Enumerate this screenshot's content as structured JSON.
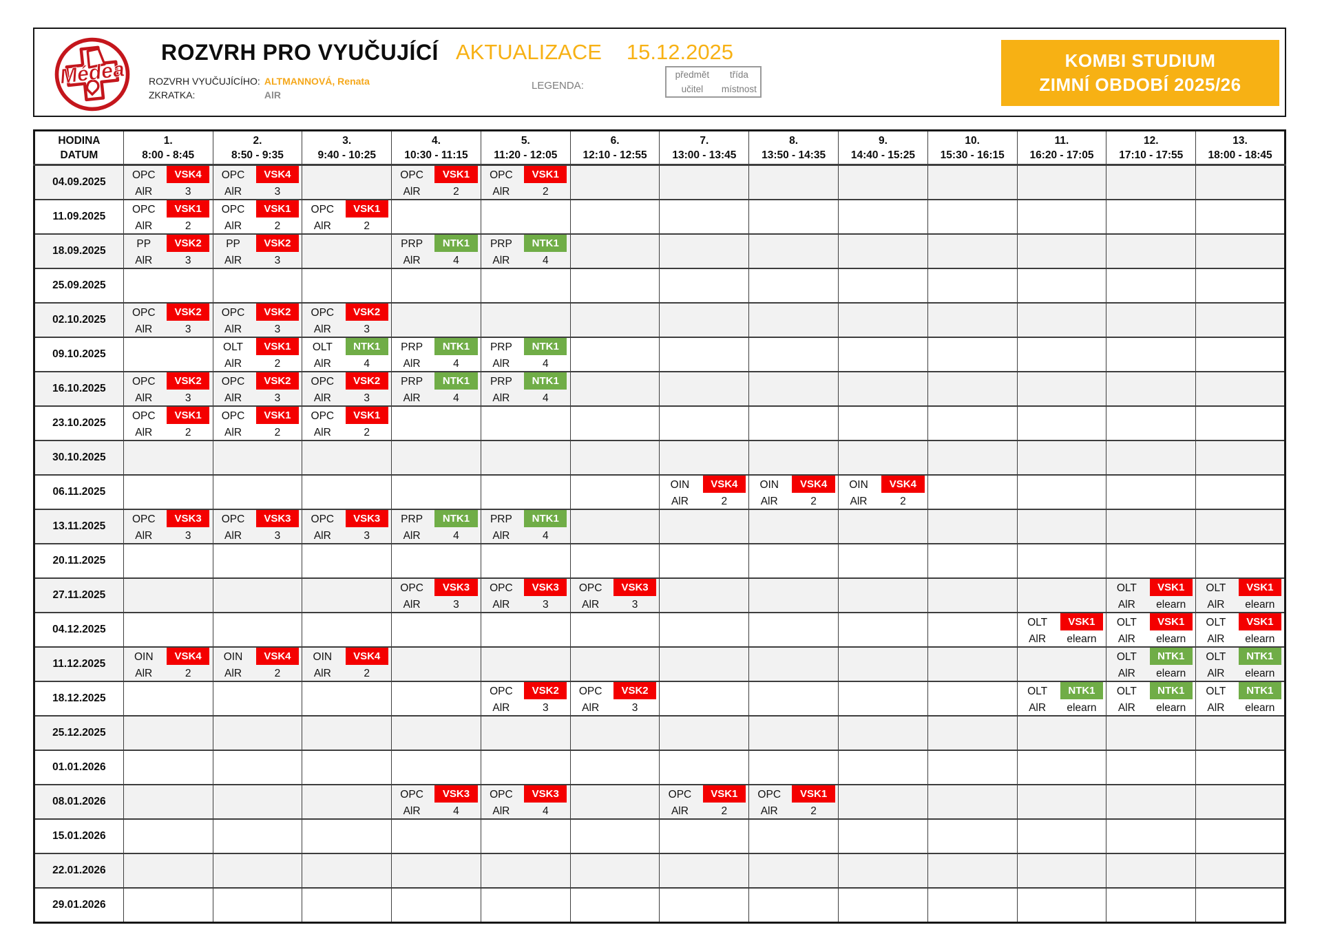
{
  "colors": {
    "accent_yellow": "#f7b114",
    "badge_red": "#f40000",
    "badge_green": "#70ad47",
    "row_shade": "#f2f2f2",
    "logo_red": "#c4161c",
    "legend_gray": "#7d7d7d"
  },
  "header": {
    "logo_text": "Médea",
    "title": "ROZVRH PRO VYUČUJÍCÍ",
    "update_label": "AKTUALIZACE",
    "update_date": "15.12.2025",
    "teacher_label": "ROZVRH VYUČUJÍCÍHO:",
    "teacher_name": "ALTMANNOVÁ, Renata",
    "abbr_label": "ZKRATKA:",
    "abbr_value": "AlR",
    "legend_label": "LEGENDA:",
    "legend": {
      "top_left": "předmět",
      "top_right": "třída",
      "bottom_left": "učitel",
      "bottom_right": "místnost"
    },
    "program_line1": "KOMBI STUDIUM",
    "program_line2": "ZIMNÍ OBDOBÍ 2025/26"
  },
  "table": {
    "corner_line1": "HODINA",
    "corner_line2": "DATUM",
    "periods": [
      {
        "num": "1.",
        "time": "8:00 - 8:45"
      },
      {
        "num": "2.",
        "time": "8:50 - 9:35"
      },
      {
        "num": "3.",
        "time": "9:40 - 10:25"
      },
      {
        "num": "4.",
        "time": "10:30 - 11:15"
      },
      {
        "num": "5.",
        "time": "11:20 - 12:05"
      },
      {
        "num": "6.",
        "time": "12:10 - 12:55"
      },
      {
        "num": "7.",
        "time": "13:00 - 13:45"
      },
      {
        "num": "8.",
        "time": "13:50 - 14:35"
      },
      {
        "num": "9.",
        "time": "14:40 - 15:25"
      },
      {
        "num": "10.",
        "time": "15:30 - 16:15"
      },
      {
        "num": "11.",
        "time": "16:20 - 17:05"
      },
      {
        "num": "12.",
        "time": "17:10 - 17:55"
      },
      {
        "num": "13.",
        "time": "18:00 - 18:45"
      }
    ],
    "rows": [
      {
        "date": "04.09.2025",
        "cells": {
          "1": {
            "subject": "OPC",
            "group": "VSK4",
            "badge": "red",
            "teacher": "AlR",
            "room": "3"
          },
          "2": {
            "subject": "OPC",
            "group": "VSK4",
            "badge": "red",
            "teacher": "AlR",
            "room": "3"
          },
          "4": {
            "subject": "OPC",
            "group": "VSK1",
            "badge": "red",
            "teacher": "AlR",
            "room": "2"
          },
          "5": {
            "subject": "OPC",
            "group": "VSK1",
            "badge": "red",
            "teacher": "AlR",
            "room": "2"
          }
        }
      },
      {
        "date": "11.09.2025",
        "cells": {
          "1": {
            "subject": "OPC",
            "group": "VSK1",
            "badge": "red",
            "teacher": "AlR",
            "room": "2"
          },
          "2": {
            "subject": "OPC",
            "group": "VSK1",
            "badge": "red",
            "teacher": "AlR",
            "room": "2"
          },
          "3": {
            "subject": "OPC",
            "group": "VSK1",
            "badge": "red",
            "teacher": "AlR",
            "room": "2"
          }
        }
      },
      {
        "date": "18.09.2025",
        "cells": {
          "1": {
            "subject": "PP",
            "group": "VSK2",
            "badge": "red",
            "teacher": "AlR",
            "room": "3"
          },
          "2": {
            "subject": "PP",
            "group": "VSK2",
            "badge": "red",
            "teacher": "AlR",
            "room": "3"
          },
          "4": {
            "subject": "PRP",
            "group": "NTK1",
            "badge": "green",
            "teacher": "AlR",
            "room": "4"
          },
          "5": {
            "subject": "PRP",
            "group": "NTK1",
            "badge": "green",
            "teacher": "AlR",
            "room": "4"
          }
        }
      },
      {
        "date": "25.09.2025",
        "cells": {}
      },
      {
        "date": "02.10.2025",
        "cells": {
          "1": {
            "subject": "OPC",
            "group": "VSK2",
            "badge": "red",
            "teacher": "AlR",
            "room": "3"
          },
          "2": {
            "subject": "OPC",
            "group": "VSK2",
            "badge": "red",
            "teacher": "AlR",
            "room": "3"
          },
          "3": {
            "subject": "OPC",
            "group": "VSK2",
            "badge": "red",
            "teacher": "AlR",
            "room": "3"
          }
        }
      },
      {
        "date": "09.10.2025",
        "cells": {
          "2": {
            "subject": "OLT",
            "group": "VSK1",
            "badge": "red",
            "teacher": "AlR",
            "room": "2"
          },
          "3": {
            "subject": "OLT",
            "group": "NTK1",
            "badge": "green",
            "teacher": "AlR",
            "room": "4"
          },
          "4": {
            "subject": "PRP",
            "group": "NTK1",
            "badge": "green",
            "teacher": "AlR",
            "room": "4"
          },
          "5": {
            "subject": "PRP",
            "group": "NTK1",
            "badge": "green",
            "teacher": "AlR",
            "room": "4"
          }
        }
      },
      {
        "date": "16.10.2025",
        "cells": {
          "1": {
            "subject": "OPC",
            "group": "VSK2",
            "badge": "red",
            "teacher": "AlR",
            "room": "3"
          },
          "2": {
            "subject": "OPC",
            "group": "VSK2",
            "badge": "red",
            "teacher": "AlR",
            "room": "3"
          },
          "3": {
            "subject": "OPC",
            "group": "VSK2",
            "badge": "red",
            "teacher": "AlR",
            "room": "3"
          },
          "4": {
            "subject": "PRP",
            "group": "NTK1",
            "badge": "green",
            "teacher": "AlR",
            "room": "4"
          },
          "5": {
            "subject": "PRP",
            "group": "NTK1",
            "badge": "green",
            "teacher": "AlR",
            "room": "4"
          }
        }
      },
      {
        "date": "23.10.2025",
        "cells": {
          "1": {
            "subject": "OPC",
            "group": "VSK1",
            "badge": "red",
            "teacher": "AlR",
            "room": "2"
          },
          "2": {
            "subject": "OPC",
            "group": "VSK1",
            "badge": "red",
            "teacher": "AlR",
            "room": "2"
          },
          "3": {
            "subject": "OPC",
            "group": "VSK1",
            "badge": "red",
            "teacher": "AlR",
            "room": "2"
          }
        }
      },
      {
        "date": "30.10.2025",
        "cells": {}
      },
      {
        "date": "06.11.2025",
        "cells": {
          "7": {
            "subject": "OIN",
            "group": "VSK4",
            "badge": "red",
            "teacher": "AlR",
            "room": "2"
          },
          "8": {
            "subject": "OIN",
            "group": "VSK4",
            "badge": "red",
            "teacher": "AlR",
            "room": "2"
          },
          "9": {
            "subject": "OIN",
            "group": "VSK4",
            "badge": "red",
            "teacher": "AlR",
            "room": "2"
          }
        }
      },
      {
        "date": "13.11.2025",
        "cells": {
          "1": {
            "subject": "OPC",
            "group": "VSK3",
            "badge": "red",
            "teacher": "AlR",
            "room": "3"
          },
          "2": {
            "subject": "OPC",
            "group": "VSK3",
            "badge": "red",
            "teacher": "AlR",
            "room": "3"
          },
          "3": {
            "subject": "OPC",
            "group": "VSK3",
            "badge": "red",
            "teacher": "AlR",
            "room": "3"
          },
          "4": {
            "subject": "PRP",
            "group": "NTK1",
            "badge": "green",
            "teacher": "AlR",
            "room": "4"
          },
          "5": {
            "subject": "PRP",
            "group": "NTK1",
            "badge": "green",
            "teacher": "AlR",
            "room": "4"
          }
        }
      },
      {
        "date": "20.11.2025",
        "cells": {}
      },
      {
        "date": "27.11.2025",
        "cells": {
          "4": {
            "subject": "OPC",
            "group": "VSK3",
            "badge": "red",
            "teacher": "AlR",
            "room": "3"
          },
          "5": {
            "subject": "OPC",
            "group": "VSK3",
            "badge": "red",
            "teacher": "AlR",
            "room": "3"
          },
          "6": {
            "subject": "OPC",
            "group": "VSK3",
            "badge": "red",
            "teacher": "AlR",
            "room": "3"
          },
          "12": {
            "subject": "OLT",
            "group": "VSK1",
            "badge": "red",
            "teacher": "AlR",
            "room": "elearn"
          },
          "13": {
            "subject": "OLT",
            "group": "VSK1",
            "badge": "red",
            "teacher": "AlR",
            "room": "elearn"
          }
        }
      },
      {
        "date": "04.12.2025",
        "cells": {
          "11": {
            "subject": "OLT",
            "group": "VSK1",
            "badge": "red",
            "teacher": "AlR",
            "room": "elearn"
          },
          "12": {
            "subject": "OLT",
            "group": "VSK1",
            "badge": "red",
            "teacher": "AlR",
            "room": "elearn"
          },
          "13": {
            "subject": "OLT",
            "group": "VSK1",
            "badge": "red",
            "teacher": "AlR",
            "room": "elearn"
          }
        }
      },
      {
        "date": "11.12.2025",
        "cells": {
          "1": {
            "subject": "OIN",
            "group": "VSK4",
            "badge": "red",
            "teacher": "AlR",
            "room": "2"
          },
          "2": {
            "subject": "OIN",
            "group": "VSK4",
            "badge": "red",
            "teacher": "AlR",
            "room": "2"
          },
          "3": {
            "subject": "OIN",
            "group": "VSK4",
            "badge": "red",
            "teacher": "AlR",
            "room": "2"
          },
          "12": {
            "subject": "OLT",
            "group": "NTK1",
            "badge": "green",
            "teacher": "AlR",
            "room": "elearn"
          },
          "13": {
            "subject": "OLT",
            "group": "NTK1",
            "badge": "green",
            "teacher": "AlR",
            "room": "elearn"
          }
        }
      },
      {
        "date": "18.12.2025",
        "cells": {
          "5": {
            "subject": "OPC",
            "group": "VSK2",
            "badge": "red",
            "teacher": "AlR",
            "room": "3"
          },
          "6": {
            "subject": "OPC",
            "group": "VSK2",
            "badge": "red",
            "teacher": "AlR",
            "room": "3"
          },
          "11": {
            "subject": "OLT",
            "group": "NTK1",
            "badge": "green",
            "teacher": "AlR",
            "room": "elearn"
          },
          "12": {
            "subject": "OLT",
            "group": "NTK1",
            "badge": "green",
            "teacher": "AlR",
            "room": "elearn"
          },
          "13": {
            "subject": "OLT",
            "group": "NTK1",
            "badge": "green",
            "teacher": "AlR",
            "room": "elearn"
          }
        }
      },
      {
        "date": "25.12.2025",
        "cells": {}
      },
      {
        "date": "01.01.2026",
        "cells": {}
      },
      {
        "date": "08.01.2026",
        "cells": {
          "4": {
            "subject": "OPC",
            "group": "VSK3",
            "badge": "red",
            "teacher": "AlR",
            "room": "4"
          },
          "5": {
            "subject": "OPC",
            "group": "VSK3",
            "badge": "red",
            "teacher": "AlR",
            "room": "4"
          },
          "7": {
            "subject": "OPC",
            "group": "VSK1",
            "badge": "red",
            "teacher": "AlR",
            "room": "2"
          },
          "8": {
            "subject": "OPC",
            "group": "VSK1",
            "badge": "red",
            "teacher": "AlR",
            "room": "2"
          }
        }
      },
      {
        "date": "15.01.2026",
        "cells": {}
      },
      {
        "date": "22.01.2026",
        "cells": {}
      },
      {
        "date": "29.01.2026",
        "cells": {}
      }
    ]
  }
}
